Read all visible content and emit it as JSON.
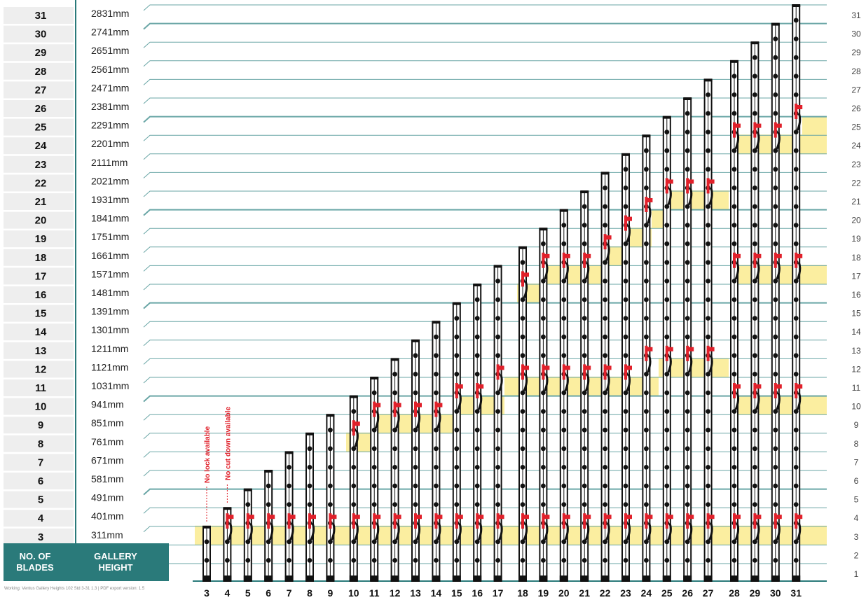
{
  "blade_counts": [
    31,
    30,
    29,
    28,
    27,
    26,
    25,
    24,
    23,
    22,
    21,
    20,
    19,
    18,
    17,
    16,
    15,
    14,
    13,
    12,
    11,
    10,
    9,
    8,
    7,
    6,
    5,
    4,
    3
  ],
  "gallery_heights": [
    "2831mm",
    "2741mm",
    "2651mm",
    "2561mm",
    "2471mm",
    "2381mm",
    "2291mm",
    "2201mm",
    "2111mm",
    "2021mm",
    "1931mm",
    "1841mm",
    "1751mm",
    "1661mm",
    "1571mm",
    "1481mm",
    "1391mm",
    "1301mm",
    "1211mm",
    "1121mm",
    "1031mm",
    "941mm",
    "851mm",
    "761mm",
    "671mm",
    "581mm",
    "491mm",
    "401mm",
    "311mm"
  ],
  "right_scale": [
    "31",
    "30",
    "29",
    "28",
    "27",
    "26",
    "25",
    "24",
    "23",
    "22",
    "21",
    "20",
    "19",
    "18",
    "17",
    "16",
    "15",
    "14",
    "13",
    "12",
    "11",
    "10",
    "9",
    "8",
    "7",
    "6",
    "5",
    "4",
    "3",
    "2",
    "1"
  ],
  "column_labels": [
    "3",
    "4",
    "5",
    "6",
    "7",
    "8",
    "9",
    "10",
    "11",
    "12",
    "13",
    "14",
    "15",
    "16",
    "17",
    "18",
    "19",
    "20",
    "21",
    "22",
    "23",
    "24",
    "25",
    "26",
    "27",
    "28",
    "29",
    "30",
    "31"
  ],
  "header": {
    "blades": "NO. OF BLADES",
    "blades_line1": "NO. OF",
    "blades_line2": "BLADES",
    "height_line1": "GALLERY",
    "height_line2": "HEIGHT"
  },
  "notes": {
    "no_lock": "No lock available",
    "no_cutdown": "No cut down available"
  },
  "footer": "Working: Ventus Gallery Heights 102 Std 3-31 1.3  |  PDF export version: 1.5",
  "colors": {
    "teal": "#2a7a7a",
    "lock_red": "#e0202a",
    "highlight": "#fbeea0",
    "blade": "#111111"
  },
  "lock_positions": {
    "3": [],
    "4": [
      4
    ],
    "5": [
      4
    ],
    "6": [
      4
    ],
    "7": [
      4
    ],
    "8": [
      4
    ],
    "9": [
      4
    ],
    "10": [
      4,
      9
    ],
    "11": [
      4,
      10
    ],
    "12": [
      4,
      10
    ],
    "13": [
      4,
      10
    ],
    "14": [
      4,
      10
    ],
    "15": [
      4,
      11
    ],
    "16": [
      4,
      11
    ],
    "17": [
      4,
      12
    ],
    "18": [
      4,
      12,
      17
    ],
    "19": [
      4,
      12,
      18
    ],
    "20": [
      4,
      12,
      18
    ],
    "21": [
      4,
      12,
      18
    ],
    "22": [
      4,
      12,
      19
    ],
    "23": [
      4,
      12,
      20
    ],
    "24": [
      4,
      13,
      21
    ],
    "25": [
      4,
      13,
      22
    ],
    "26": [
      4,
      13,
      22
    ],
    "27": [
      4,
      13,
      22
    ],
    "28": [
      4,
      11,
      18,
      25
    ],
    "29": [
      4,
      11,
      18,
      25
    ],
    "30": [
      4,
      11,
      18,
      25
    ],
    "31": [
      4,
      11,
      18,
      26
    ]
  }
}
